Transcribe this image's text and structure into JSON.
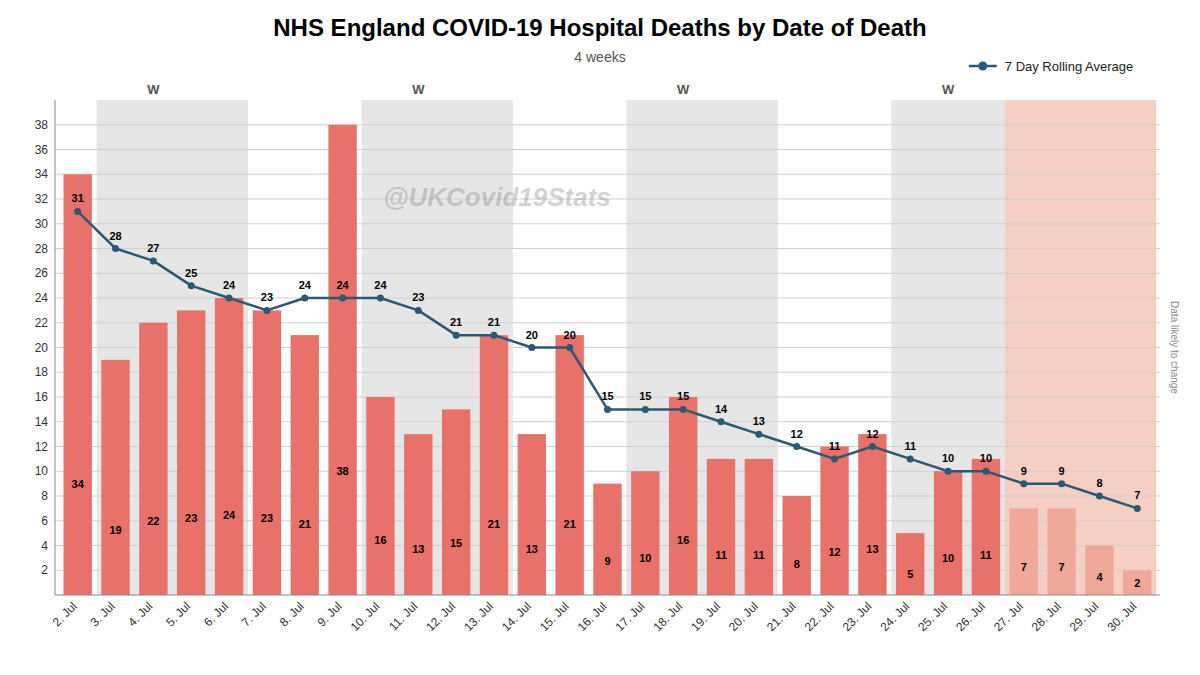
{
  "chart_data": {
    "type": "bar",
    "title": "NHS England COVID-19 Hospital Deaths by Date of Death",
    "subtitle": "4 weeks",
    "categories": [
      "2. Jul",
      "3. Jul",
      "4. Jul",
      "5. Jul",
      "6. Jul",
      "7. Jul",
      "8. Jul",
      "9. Jul",
      "10. Jul",
      "11. Jul",
      "12. Jul",
      "13. Jul",
      "14. Jul",
      "15. Jul",
      "16. Jul",
      "17. Jul",
      "18. Jul",
      "19. Jul",
      "20. Jul",
      "21. Jul",
      "22. Jul",
      "23. Jul",
      "24. Jul",
      "25. Jul",
      "26. Jul",
      "27. Jul",
      "28. Jul",
      "29. Jul",
      "30. Jul"
    ],
    "series": [
      {
        "type": "bar",
        "values": [
          34,
          19,
          22,
          23,
          24,
          23,
          21,
          38,
          16,
          13,
          15,
          21,
          13,
          21,
          9,
          10,
          16,
          11,
          11,
          8,
          12,
          13,
          5,
          10,
          11,
          7,
          7,
          4,
          2
        ],
        "colors": [
          "#E8726A",
          "#E8726A",
          "#E8726A",
          "#E8726A",
          "#E8726A",
          "#E8726A",
          "#E8726A",
          "#E8726A",
          "#E8726A",
          "#E8726A",
          "#E8726A",
          "#E8726A",
          "#E8726A",
          "#E8726A",
          "#E8726A",
          "#E8726A",
          "#E8726A",
          "#E8726A",
          "#E8726A",
          "#E8726A",
          "#E8726A",
          "#E8726A",
          "#E8726A",
          "#E8726A",
          "#E8726A",
          "#F0A898",
          "#F0A898",
          "#F0A898",
          "#F0A898"
        ]
      },
      {
        "type": "line",
        "name": "7 Day Rolling Average",
        "color": "#2B5872",
        "marker": "circle",
        "values": [
          31,
          28,
          27,
          25,
          24,
          23,
          24,
          24,
          24,
          23,
          21,
          21,
          20,
          20,
          15,
          15,
          15,
          14,
          13,
          12,
          11,
          12,
          11,
          10,
          10,
          9,
          9,
          8,
          7
        ]
      }
    ],
    "bands": [
      {
        "x_from": "3. Jul",
        "x_to": "6. Jul",
        "color": "#E6E6E6"
      },
      {
        "x_from": "10. Jul",
        "x_to": "13. Jul",
        "color": "#E6E6E6"
      },
      {
        "x_from": "17. Jul",
        "x_to": "20. Jul",
        "color": "#E6E6E6"
      },
      {
        "x_from": "24. Jul",
        "x_to": "27. Jul",
        "color": "#E6E6E6"
      },
      {
        "x_from": "27. Jul",
        "x_to": "30. Jul",
        "color": "#F5CEC4"
      }
    ],
    "annotations": [
      {
        "text": "W",
        "x": "4. Jul"
      },
      {
        "text": "W",
        "x": "11. Jul"
      },
      {
        "text": "W",
        "x": "18. Jul"
      },
      {
        "text": "W",
        "x": "25. Jul"
      },
      {
        "text": "@UKCovid19Stats"
      },
      {
        "text": "Data likely to change",
        "side": "right"
      }
    ],
    "ylim": [
      0,
      40
    ],
    "yticks": [
      2,
      4,
      6,
      8,
      10,
      12,
      14,
      16,
      18,
      20,
      22,
      24,
      26,
      28,
      30,
      32,
      34,
      36,
      38
    ],
    "grid": true,
    "data_labels": true,
    "legend": "upper right"
  }
}
